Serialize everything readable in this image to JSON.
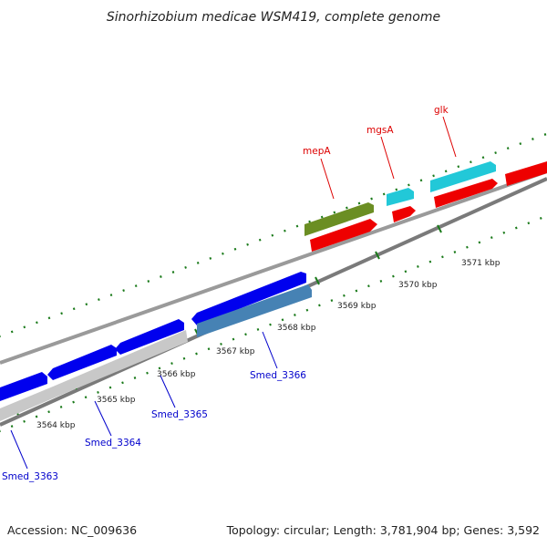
{
  "title": "Sinorhizobium medicae WSM419, complete genome",
  "footer": {
    "accession": "Accession: NC_009636",
    "summary": "Topology: circular; Length: 3,781,904 bp; Genes: 3,592"
  },
  "colors": {
    "backbone": "#888888",
    "tick": "#1a7a1a",
    "label_blue": "#0000cc",
    "label_red": "#dd0000",
    "gene_blue": "#0000ee",
    "gene_gray": "#c8c8c8",
    "gene_steel": "#4682b4",
    "gene_olive": "#6b8e23",
    "gene_red": "#ee0000",
    "gene_cyan": "#22c8d8"
  },
  "ticks": [
    "3564 kbp",
    "3565 kbp",
    "3566 kbp",
    "3567 kbp",
    "3568 kbp",
    "3569 kbp",
    "3570 kbp",
    "3571 kbp"
  ],
  "gene_labels": [
    {
      "text": "Smed_3363",
      "color": "blue"
    },
    {
      "text": "Smed_3364",
      "color": "blue"
    },
    {
      "text": "Smed_3365",
      "color": "blue"
    },
    {
      "text": "Smed_3366",
      "color": "blue"
    },
    {
      "text": "mepA",
      "color": "red"
    },
    {
      "text": "mgsA",
      "color": "red"
    },
    {
      "text": "glk",
      "color": "red"
    }
  ]
}
